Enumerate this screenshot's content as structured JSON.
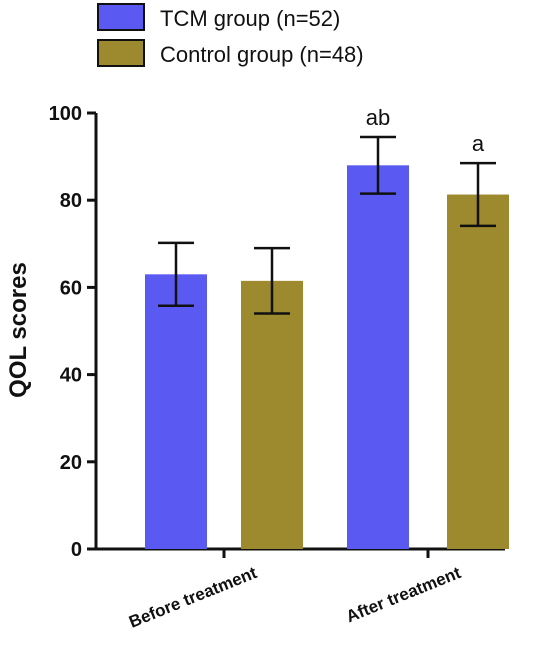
{
  "chart_data": {
    "type": "bar",
    "categories": [
      "Before treatment",
      "After treatment"
    ],
    "series": [
      {
        "name": "TCM group (n=52)",
        "color": "#5a5af2",
        "values": [
          63,
          88
        ],
        "errors": [
          7.2,
          6.5
        ]
      },
      {
        "name": "Control group (n=48)",
        "color": "#9e8a2e",
        "values": [
          61.5,
          81.3
        ],
        "errors": [
          7.5,
          7.2
        ]
      }
    ],
    "annotations": [
      {
        "category": "After treatment",
        "series": "TCM group (n=52)",
        "text": "ab"
      },
      {
        "category": "After treatment",
        "series": "Control group (n=48)",
        "text": "a"
      }
    ],
    "ylabel": "QOL scores",
    "xlabel": "",
    "ylim": [
      0,
      100
    ],
    "yticks": [
      0,
      20,
      40,
      60,
      80,
      100
    ],
    "grid": false,
    "legend": "top-left"
  }
}
